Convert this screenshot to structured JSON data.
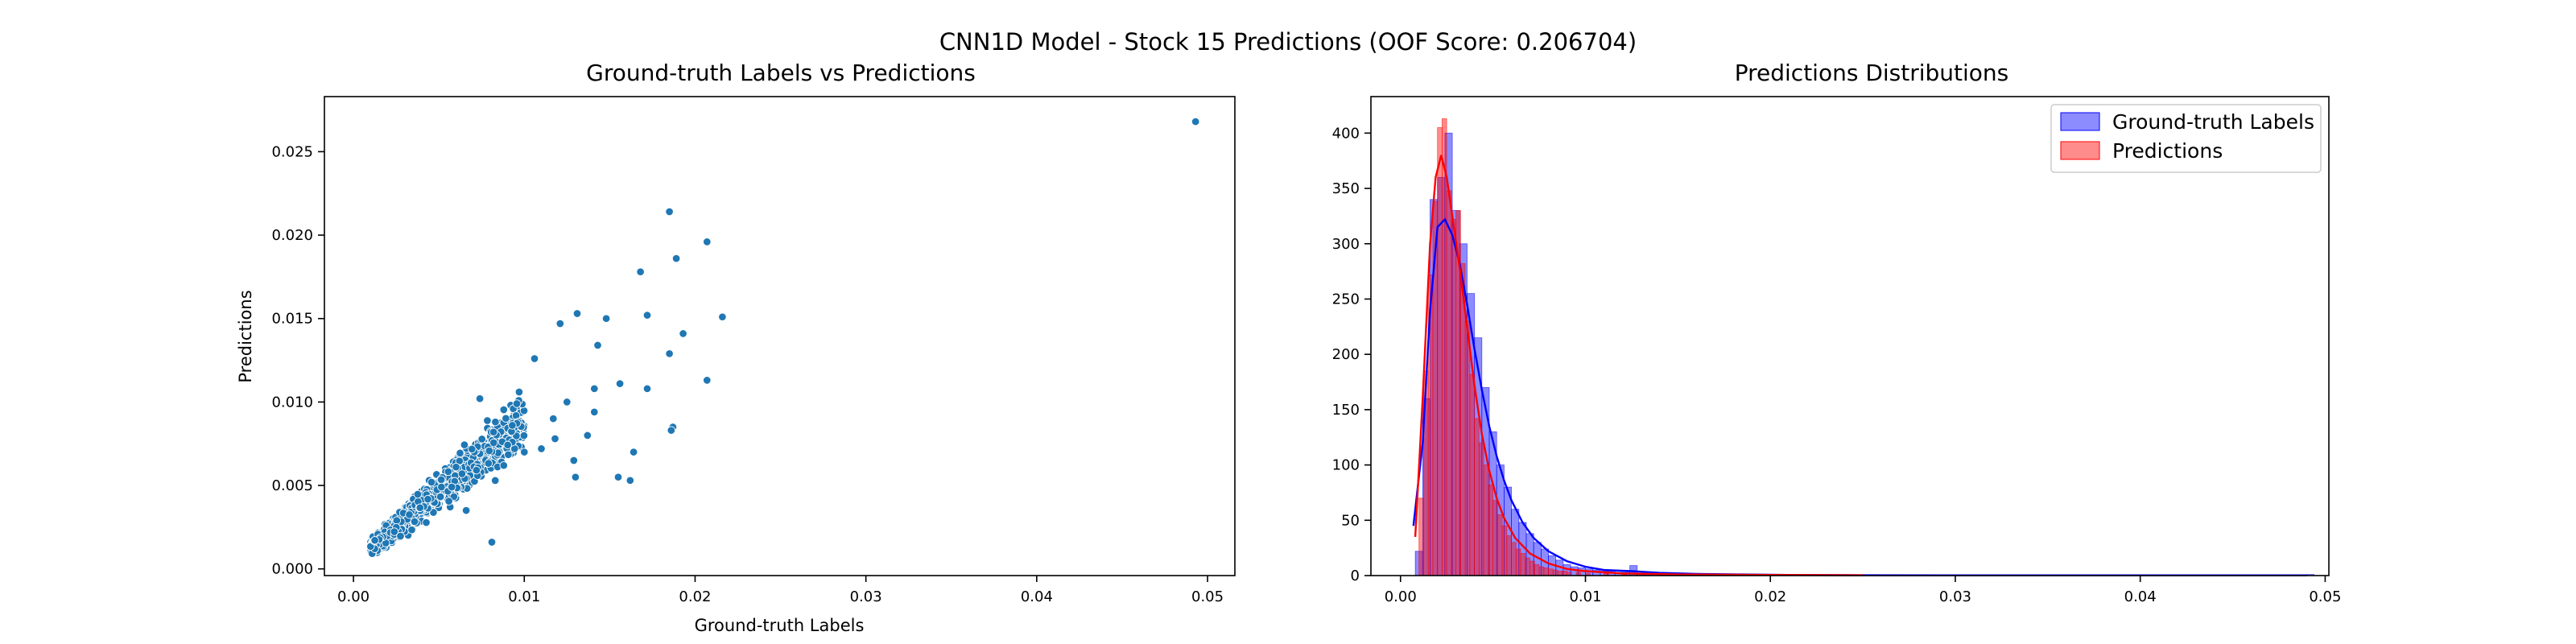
{
  "suptitle": "CNN1D Model - Stock 15 Predictions (OOF Score: 0.206704)",
  "chart_data": [
    {
      "type": "scatter",
      "title": "Ground-truth Labels vs Predictions",
      "xlabel": "Ground-truth Labels",
      "ylabel": "Predictions",
      "xlim": [
        -0.0017,
        0.0516
      ],
      "ylim": [
        -0.0004,
        0.0283
      ],
      "xticks": [
        0.0,
        0.01,
        0.02,
        0.03,
        0.04,
        0.05
      ],
      "xtick_labels": [
        "0.00",
        "0.01",
        "0.02",
        "0.03",
        "0.04",
        "0.05"
      ],
      "yticks": [
        0.0,
        0.005,
        0.01,
        0.015,
        0.02,
        0.025
      ],
      "ytick_labels": [
        "0.000",
        "0.005",
        "0.010",
        "0.015",
        "0.020",
        "0.025"
      ],
      "color": "#1f77b4",
      "grid": false,
      "points": [
        [
          0.0493,
          0.0268
        ],
        [
          0.0185,
          0.0214
        ],
        [
          0.0207,
          0.0196
        ],
        [
          0.0189,
          0.0186
        ],
        [
          0.0168,
          0.0178
        ],
        [
          0.0216,
          0.0151
        ],
        [
          0.0172,
          0.0152
        ],
        [
          0.0131,
          0.0153
        ],
        [
          0.0148,
          0.015
        ],
        [
          0.0121,
          0.0147
        ],
        [
          0.0143,
          0.0134
        ],
        [
          0.0207,
          0.0113
        ],
        [
          0.0185,
          0.0129
        ],
        [
          0.0193,
          0.0141
        ],
        [
          0.0172,
          0.0108
        ],
        [
          0.0156,
          0.0111
        ],
        [
          0.0141,
          0.0108
        ],
        [
          0.0187,
          0.0085
        ],
        [
          0.0186,
          0.0083
        ],
        [
          0.0164,
          0.007
        ],
        [
          0.0137,
          0.008
        ],
        [
          0.0117,
          0.009
        ],
        [
          0.013,
          0.0055
        ],
        [
          0.0155,
          0.0055
        ],
        [
          0.0162,
          0.0053
        ],
        [
          0.0129,
          0.0065
        ],
        [
          0.0106,
          0.0126
        ],
        [
          0.0125,
          0.01
        ],
        [
          0.0141,
          0.0094
        ],
        [
          0.0097,
          0.0106
        ],
        [
          0.0074,
          0.0102
        ],
        [
          0.0082,
          0.0082
        ],
        [
          0.0088,
          0.0062
        ],
        [
          0.0081,
          0.0016
        ],
        [
          0.0066,
          0.0035
        ],
        [
          0.011,
          0.0072
        ],
        [
          0.0118,
          0.0078
        ],
        [
          0.01,
          0.007
        ],
        [
          0.0093,
          0.0086
        ]
      ]
    },
    {
      "type": "histogram",
      "title": "Predictions Distributions",
      "xlim": [
        -0.0016,
        0.0502
      ],
      "ylim": [
        0,
        433
      ],
      "xticks": [
        0.0,
        0.01,
        0.02,
        0.03,
        0.04,
        0.05
      ],
      "xtick_labels": [
        "0.00",
        "0.01",
        "0.02",
        "0.03",
        "0.04",
        "0.05"
      ],
      "yticks": [
        0,
        50,
        100,
        150,
        200,
        250,
        300,
        350,
        400
      ],
      "ytick_labels": [
        "0",
        "50",
        "100",
        "150",
        "200",
        "250",
        "300",
        "350",
        "400"
      ],
      "grid": false,
      "legend_position": "top-right",
      "series": [
        {
          "name": "Ground-truth Labels",
          "color": "#0000ff",
          "bin_width": 0.0004,
          "bins": [
            [
              0.0008,
              22
            ],
            [
              0.0012,
              160
            ],
            [
              0.0016,
              340
            ],
            [
              0.002,
              360
            ],
            [
              0.0024,
              400
            ],
            [
              0.0028,
              330
            ],
            [
              0.0032,
              300
            ],
            [
              0.0036,
              255
            ],
            [
              0.004,
              215
            ],
            [
              0.0044,
              170
            ],
            [
              0.0048,
              130
            ],
            [
              0.0052,
              100
            ],
            [
              0.0056,
              80
            ],
            [
              0.006,
              60
            ],
            [
              0.0064,
              48
            ],
            [
              0.0068,
              38
            ],
            [
              0.0072,
              30
            ],
            [
              0.0076,
              24
            ],
            [
              0.008,
              18
            ],
            [
              0.0084,
              14
            ],
            [
              0.0088,
              10
            ],
            [
              0.0092,
              8
            ],
            [
              0.0096,
              7
            ],
            [
              0.01,
              6
            ],
            [
              0.0104,
              5
            ],
            [
              0.0108,
              4
            ],
            [
              0.0112,
              4
            ],
            [
              0.0116,
              3
            ],
            [
              0.012,
              3
            ],
            [
              0.0124,
              9
            ],
            [
              0.0128,
              2
            ],
            [
              0.0132,
              2
            ],
            [
              0.014,
              2
            ],
            [
              0.015,
              1
            ],
            [
              0.016,
              1
            ],
            [
              0.017,
              1
            ],
            [
              0.0185,
              1
            ],
            [
              0.02,
              1
            ],
            [
              0.021,
              1
            ],
            [
              0.049,
              1
            ]
          ],
          "kde": [
            [
              0.0007,
              45
            ],
            [
              0.0012,
              120
            ],
            [
              0.0016,
              240
            ],
            [
              0.002,
              315
            ],
            [
              0.0024,
              322
            ],
            [
              0.0028,
              308
            ],
            [
              0.0032,
              282
            ],
            [
              0.0036,
              245
            ],
            [
              0.004,
              205
            ],
            [
              0.0044,
              168
            ],
            [
              0.0048,
              135
            ],
            [
              0.0052,
              108
            ],
            [
              0.0056,
              86
            ],
            [
              0.006,
              68
            ],
            [
              0.0066,
              48
            ],
            [
              0.0072,
              34
            ],
            [
              0.008,
              22
            ],
            [
              0.009,
              13
            ],
            [
              0.01,
              8
            ],
            [
              0.011,
              5
            ],
            [
              0.0125,
              4
            ],
            [
              0.014,
              2.5
            ],
            [
              0.016,
              1.5
            ],
            [
              0.0185,
              1
            ],
            [
              0.021,
              0.6
            ],
            [
              0.025,
              0.3
            ],
            [
              0.03,
              0.2
            ],
            [
              0.04,
              0.2
            ],
            [
              0.049,
              0.2
            ]
          ]
        },
        {
          "name": "Predictions",
          "color": "#ff0000",
          "bin_width": 0.00025,
          "bins": [
            [
              0.001,
              70
            ],
            [
              0.00125,
              185
            ],
            [
              0.0015,
              272
            ],
            [
              0.00175,
              338
            ],
            [
              0.002,
              405
            ],
            [
              0.00225,
              413
            ],
            [
              0.0025,
              348
            ],
            [
              0.00275,
              322
            ],
            [
              0.003,
              330
            ],
            [
              0.00325,
              282
            ],
            [
              0.0035,
              230
            ],
            [
              0.00375,
              182
            ],
            [
              0.004,
              142
            ],
            [
              0.00425,
              120
            ],
            [
              0.0045,
              100
            ],
            [
              0.00475,
              82
            ],
            [
              0.005,
              68
            ],
            [
              0.00525,
              55
            ],
            [
              0.0055,
              45
            ],
            [
              0.00575,
              36
            ],
            [
              0.006,
              30
            ],
            [
              0.00625,
              24
            ],
            [
              0.0065,
              20
            ],
            [
              0.00675,
              16
            ],
            [
              0.007,
              13
            ],
            [
              0.00725,
              10
            ],
            [
              0.0075,
              8
            ],
            [
              0.00775,
              7
            ],
            [
              0.008,
              6
            ],
            [
              0.00825,
              5
            ],
            [
              0.0085,
              4
            ],
            [
              0.00875,
              4
            ],
            [
              0.009,
              3
            ],
            [
              0.0095,
              3
            ],
            [
              0.01,
              2
            ],
            [
              0.011,
              2
            ],
            [
              0.012,
              1
            ],
            [
              0.013,
              1
            ],
            [
              0.015,
              1
            ],
            [
              0.018,
              1
            ],
            [
              0.02,
              1
            ],
            [
              0.021,
              1
            ]
          ],
          "kde": [
            [
              0.0008,
              35
            ],
            [
              0.0012,
              160
            ],
            [
              0.0016,
              300
            ],
            [
              0.0019,
              360
            ],
            [
              0.0022,
              380
            ],
            [
              0.0025,
              360
            ],
            [
              0.0028,
              325
            ],
            [
              0.0032,
              278
            ],
            [
              0.0036,
              225
            ],
            [
              0.004,
              172
            ],
            [
              0.0044,
              128
            ],
            [
              0.0048,
              95
            ],
            [
              0.0052,
              70
            ],
            [
              0.0056,
              52
            ],
            [
              0.0062,
              34
            ],
            [
              0.007,
              20
            ],
            [
              0.008,
              11
            ],
            [
              0.009,
              6
            ],
            [
              0.01,
              4
            ],
            [
              0.012,
              2
            ],
            [
              0.015,
              1
            ],
            [
              0.02,
              0.6
            ],
            [
              0.025,
              0.3
            ]
          ]
        }
      ]
    }
  ]
}
